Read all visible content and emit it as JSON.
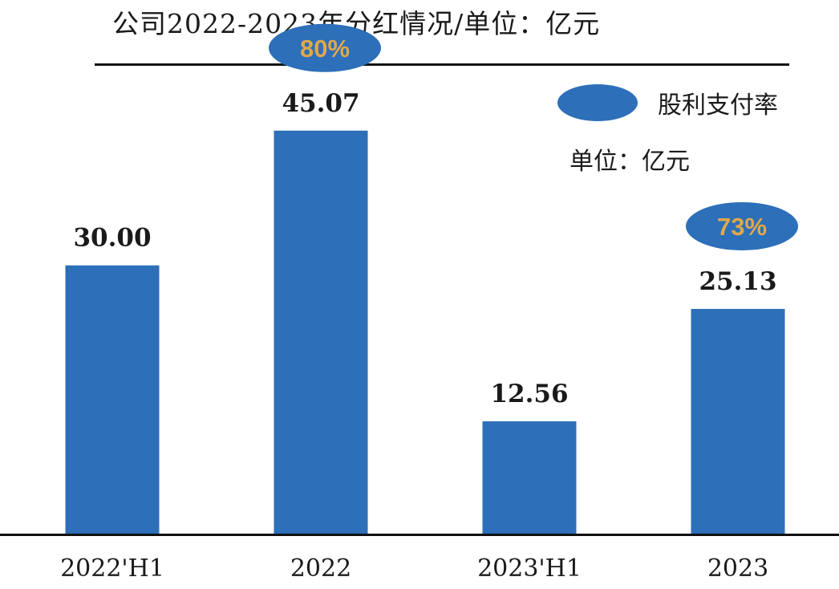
{
  "title": "公司2022-2023年分红情况/单位：亿元",
  "legend": {
    "label": "股利支付率",
    "unit_note": "单位：亿元"
  },
  "colors": {
    "bar": "#2d6fb8",
    "ratio_ellipse": "#2d6fb8",
    "ratio_text": "#e0a84a",
    "axis": "#111111"
  },
  "chart_data": {
    "type": "bar",
    "categories": [
      "2022'H1",
      "2022",
      "2023'H1",
      "2023"
    ],
    "values": [
      30.0,
      45.07,
      12.56,
      25.13
    ],
    "value_labels": [
      "30.00",
      "45.07",
      "12.56",
      "25.13"
    ],
    "payout_ratio_labels": [
      "",
      "80%",
      "",
      "73%"
    ],
    "ylim": [
      0,
      52.5
    ],
    "grid": false,
    "legend_position": "top-right"
  }
}
